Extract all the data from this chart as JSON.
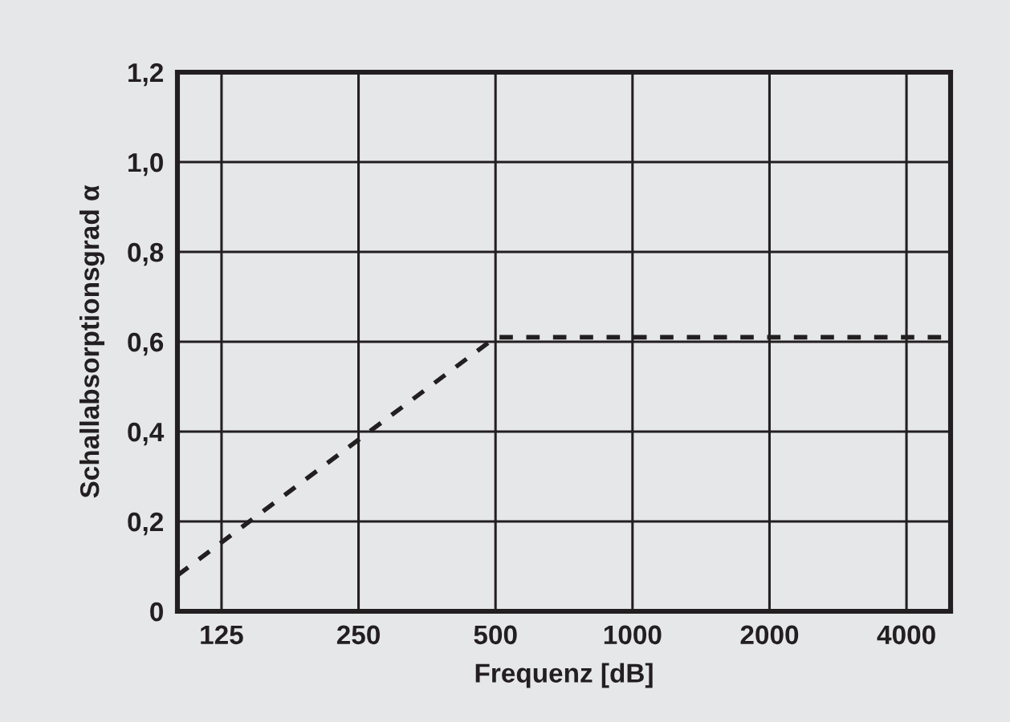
{
  "chart_data": {
    "type": "line",
    "xlabel": "Frequenz [dB]",
    "ylabel": "Schallabsorptionsgrad α",
    "x": [
      100,
      500,
      5000
    ],
    "series": [
      {
        "color": "#231f20",
        "values": [
          0.08,
          0.61,
          0.61
        ]
      }
    ],
    "log": "x",
    "xlim": [
      100,
      5000
    ],
    "xticks": [
      125,
      250,
      500,
      1000,
      2000,
      4000
    ],
    "ylim": [
      0,
      1.2
    ],
    "yticks": [
      0,
      {
        "value": 0.2,
        "label": "0,2"
      },
      {
        "value": 0.4,
        "label": "0,4"
      },
      {
        "value": 0.6,
        "label": "0,6"
      },
      {
        "value": 0.8,
        "label": "0,8"
      },
      {
        "value": 1.0,
        "label": "1,0"
      },
      {
        "value": 1.2,
        "label": "1,2"
      }
    ],
    "grid": true,
    "line_style": "dashed",
    "marker": "none",
    "legend": false
  }
}
